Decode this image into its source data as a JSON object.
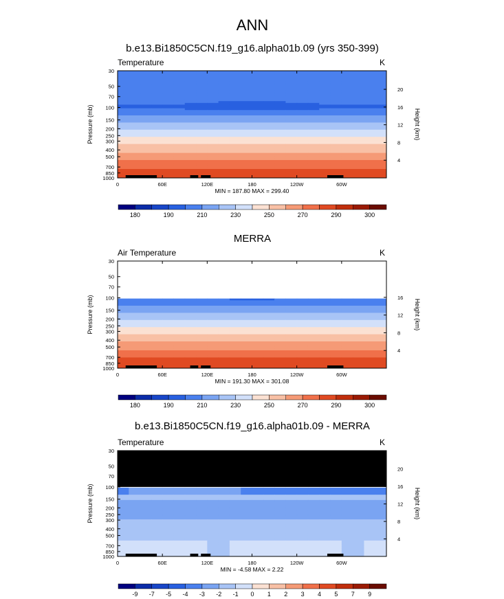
{
  "title": "ANN",
  "panel_titles": [
    "b.e13.Bi1850C5CN.f19_g16.alpha01b.09 (yrs 350-399)",
    "MERRA",
    "b.e13.Bi1850C5CN.f19_g16.alpha01b.09 - MERRA"
  ],
  "chart_data": [
    {
      "type": "heatmap",
      "variable": "Temperature",
      "units": "K",
      "ylabel": "Pressure (mb)",
      "ylabel_right": "Height (km)",
      "pressure_ticks": [
        "30",
        "50",
        "70",
        "100",
        "150",
        "200",
        "250",
        "300",
        "400",
        "500",
        "700",
        "850",
        "1000"
      ],
      "height_ticks": [
        "20",
        "16",
        "12",
        "8",
        "4"
      ],
      "lon_ticks": [
        "0",
        "60E",
        "120E",
        "180",
        "120W",
        "60W"
      ],
      "stats": "MIN = 187.80  MAX = 299.40",
      "colorbar_labels": [
        "180",
        "190",
        "210",
        "230",
        "250",
        "270",
        "290",
        "300"
      ],
      "levels": [
        180,
        185,
        190,
        200,
        210,
        220,
        230,
        240,
        250,
        260,
        270,
        280,
        290,
        295,
        300
      ],
      "ylim": [
        1000,
        30
      ],
      "xlim": [
        0,
        360
      ]
    },
    {
      "type": "heatmap",
      "variable": "Air Temperature",
      "units": "K",
      "ylabel": "Pressure (mb)",
      "ylabel_right": "Height (km)",
      "pressure_ticks": [
        "30",
        "50",
        "70",
        "100",
        "150",
        "200",
        "250",
        "300",
        "400",
        "500",
        "700",
        "850",
        "1000"
      ],
      "height_ticks": [
        "16",
        "12",
        "8",
        "4"
      ],
      "lon_ticks": [
        "0",
        "60E",
        "120E",
        "180",
        "120W",
        "60W"
      ],
      "stats": "MIN = 191.30  MAX = 301.08",
      "colorbar_labels": [
        "180",
        "190",
        "210",
        "230",
        "250",
        "270",
        "290",
        "300"
      ],
      "levels": [
        180,
        185,
        190,
        200,
        210,
        220,
        230,
        240,
        250,
        260,
        270,
        280,
        290,
        295,
        300
      ],
      "ylim": [
        1000,
        30
      ],
      "xlim": [
        0,
        360
      ],
      "missing_above_hpa": 100
    },
    {
      "type": "heatmap",
      "variable": "Temperature",
      "units": "K",
      "ylabel": "Pressure (mb)",
      "ylabel_right": "Height (km)",
      "pressure_ticks": [
        "30",
        "50",
        "70",
        "100",
        "150",
        "200",
        "250",
        "300",
        "400",
        "500",
        "700",
        "850",
        "1000"
      ],
      "height_ticks": [
        "20",
        "16",
        "12",
        "8",
        "4"
      ],
      "lon_ticks": [
        "0",
        "60E",
        "120E",
        "180",
        "120W",
        "60W"
      ],
      "stats": "MIN = -4.58  MAX =  2.22",
      "colorbar_labels": [
        "-9",
        "-7",
        "-5",
        "-4",
        "-3",
        "-2",
        "-1",
        "0",
        "1",
        "2",
        "3",
        "4",
        "5",
        "7",
        "9"
      ],
      "levels": [
        -9,
        -7,
        -5,
        -4,
        -3,
        -2,
        -1,
        0,
        1,
        2,
        3,
        4,
        5,
        7,
        9
      ],
      "ylim": [
        1000,
        30
      ],
      "xlim": [
        0,
        360
      ],
      "missing_above_hpa": 100
    }
  ],
  "colors": [
    "#00007f",
    "#0b2ca8",
    "#1846c8",
    "#2860e0",
    "#4a80ee",
    "#7aa4f2",
    "#a8c4f6",
    "#d2e0fa",
    "#fbe1d3",
    "#f8c0a5",
    "#f59a76",
    "#f0704a",
    "#e04a22",
    "#c02e0c",
    "#9a1a04",
    "#6a0c00"
  ]
}
